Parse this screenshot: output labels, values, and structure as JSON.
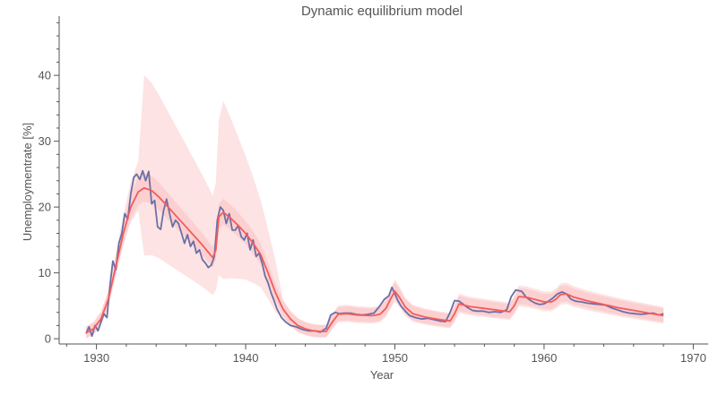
{
  "chart_data": {
    "type": "line",
    "title": "Dynamic equilibrium model",
    "xlabel": "Year",
    "ylabel": "Unemploymentrate [%]",
    "xlim": [
      1927.5,
      1971
    ],
    "ylim": [
      -0.8,
      49
    ],
    "xticks": [
      1930,
      1940,
      1950,
      1960,
      1970
    ],
    "yticks": [
      0,
      10,
      20,
      30,
      40
    ],
    "grid": false,
    "legend": "none",
    "colors": {
      "data": "#6b6fa8",
      "model": "#f45b5b",
      "band_outer": "#fde3e3",
      "band_inner": "#fbcaca",
      "axis": "#555555"
    },
    "series": [
      {
        "role": "data",
        "x": [
          1929.3,
          1929.5,
          1929.7,
          1929.9,
          1930.1,
          1930.3,
          1930.5,
          1930.7,
          1930.9,
          1931.1,
          1931.3,
          1931.5,
          1931.7,
          1931.9,
          1932.1,
          1932.3,
          1932.5,
          1932.7,
          1932.9,
          1933.1,
          1933.3,
          1933.5,
          1933.7,
          1933.9,
          1934.1,
          1934.3,
          1934.5,
          1934.7,
          1934.9,
          1935.1,
          1935.3,
          1935.5,
          1935.7,
          1935.9,
          1936.1,
          1936.3,
          1936.5,
          1936.7,
          1936.9,
          1937.1,
          1937.3,
          1937.5,
          1937.7,
          1937.9,
          1938.1,
          1938.3,
          1938.5,
          1938.7,
          1938.9,
          1939.1,
          1939.3,
          1939.5,
          1939.7,
          1939.9,
          1940.1,
          1940.3,
          1940.5,
          1940.7,
          1940.9,
          1941.1,
          1941.3,
          1941.5,
          1941.7,
          1941.9,
          1942.1,
          1942.4,
          1942.7,
          1943.0,
          1943.4,
          1943.8,
          1944.2,
          1944.6,
          1945.0,
          1945.4,
          1945.7,
          1946.0,
          1946.3,
          1946.6,
          1947.0,
          1947.4,
          1947.8,
          1948.2,
          1948.6,
          1949.0,
          1949.3,
          1949.6,
          1949.8,
          1950.0,
          1950.2,
          1950.4,
          1950.7,
          1951.0,
          1951.4,
          1951.8,
          1952.2,
          1952.6,
          1953.0,
          1953.4,
          1953.7,
          1954.0,
          1954.3,
          1954.6,
          1954.9,
          1955.2,
          1955.5,
          1955.9,
          1956.3,
          1956.7,
          1957.1,
          1957.5,
          1957.8,
          1958.1,
          1958.3,
          1958.5,
          1958.8,
          1959.1,
          1959.4,
          1959.7,
          1960.0,
          1960.3,
          1960.6,
          1960.9,
          1961.2,
          1961.5,
          1961.8,
          1962.1,
          1962.5,
          1962.9,
          1963.3,
          1963.7,
          1964.1,
          1964.5,
          1964.9,
          1965.3,
          1965.7,
          1966.1,
          1966.5,
          1966.9,
          1967.3,
          1967.7,
          1968.0
        ],
        "y": [
          0.8,
          1.8,
          0.4,
          2.0,
          1.2,
          2.5,
          3.8,
          3.2,
          8.0,
          11.8,
          10.5,
          14.5,
          16.0,
          19.0,
          18.2,
          22.0,
          24.5,
          25.0,
          24.2,
          25.5,
          24.0,
          25.4,
          20.5,
          21.0,
          17.0,
          16.6,
          19.5,
          21.2,
          19.0,
          17.0,
          18.0,
          17.5,
          16.0,
          14.5,
          15.8,
          14.0,
          14.8,
          13.0,
          13.5,
          12.0,
          11.5,
          10.8,
          11.2,
          12.5,
          18.0,
          20.0,
          19.5,
          17.5,
          19.0,
          16.5,
          16.5,
          17.2,
          15.5,
          15.0,
          16.0,
          13.5,
          15.0,
          12.5,
          13.0,
          11.5,
          9.5,
          8.5,
          7.0,
          5.8,
          4.5,
          3.2,
          2.5,
          2.0,
          1.8,
          1.4,
          1.2,
          1.2,
          1.0,
          1.6,
          3.6,
          4.0,
          3.8,
          3.9,
          3.9,
          3.7,
          3.6,
          3.7,
          3.9,
          5.0,
          6.0,
          6.5,
          7.8,
          6.8,
          5.8,
          5.0,
          4.2,
          3.5,
          3.2,
          3.0,
          3.1,
          2.9,
          2.7,
          2.6,
          4.0,
          5.8,
          5.7,
          5.2,
          4.7,
          4.3,
          4.2,
          4.2,
          4.0,
          4.1,
          4.0,
          4.4,
          6.4,
          7.4,
          7.3,
          7.2,
          6.3,
          5.8,
          5.4,
          5.2,
          5.3,
          5.7,
          6.2,
          6.8,
          7.1,
          6.8,
          6.0,
          5.7,
          5.6,
          5.4,
          5.3,
          5.2,
          5.1,
          4.7,
          4.4,
          4.1,
          3.9,
          3.8,
          3.7,
          3.8,
          3.9,
          3.6,
          3.8
        ]
      },
      {
        "role": "model",
        "x": [
          1929.3,
          1929.8,
          1930.3,
          1930.8,
          1931.3,
          1931.8,
          1932.3,
          1932.8,
          1933.2,
          1933.7,
          1934.2,
          1935.0,
          1936.0,
          1937.0,
          1937.8,
          1938.0,
          1938.2,
          1938.5,
          1939.0,
          1939.5,
          1940.0,
          1940.5,
          1941.0,
          1941.5,
          1942.0,
          1942.5,
          1943.0,
          1943.5,
          1944.0,
          1944.5,
          1945.0,
          1945.4,
          1945.8,
          1946.2,
          1946.8,
          1947.5,
          1948.5,
          1949.0,
          1949.4,
          1949.7,
          1950.0,
          1950.3,
          1950.7,
          1951.2,
          1952.0,
          1953.0,
          1953.7,
          1954.0,
          1954.3,
          1955.0,
          1956.0,
          1957.0,
          1957.7,
          1958.0,
          1958.3,
          1958.8,
          1959.5,
          1960.0,
          1960.5,
          1960.8,
          1961.1,
          1961.5,
          1962.0,
          1963.0,
          1964.0,
          1965.0,
          1966.0,
          1967.0,
          1968.0
        ],
        "y": [
          0.9,
          1.5,
          3.0,
          6.0,
          11.0,
          16.0,
          20.0,
          22.3,
          22.9,
          22.5,
          21.5,
          19.5,
          17.0,
          14.5,
          12.3,
          13.5,
          18.5,
          19.2,
          18.3,
          17.2,
          16.0,
          14.5,
          12.8,
          10.0,
          7.0,
          4.5,
          3.0,
          2.0,
          1.5,
          1.2,
          1.1,
          1.1,
          2.5,
          3.7,
          3.8,
          3.6,
          3.5,
          3.7,
          4.6,
          6.0,
          7.2,
          6.3,
          4.8,
          3.8,
          3.3,
          2.9,
          2.7,
          3.8,
          5.3,
          4.9,
          4.6,
          4.3,
          4.1,
          5.0,
          6.4,
          6.3,
          5.9,
          5.6,
          5.6,
          6.0,
          6.7,
          6.8,
          6.3,
          5.7,
          5.2,
          4.7,
          4.3,
          3.9,
          3.5
        ]
      }
    ]
  }
}
